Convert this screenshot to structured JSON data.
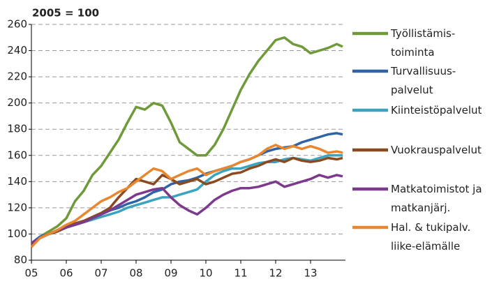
{
  "chart_data": {
    "type": "line",
    "title": "2005 = 100",
    "x": [
      2005,
      2005.25,
      2005.5,
      2005.75,
      2006,
      2006.25,
      2006.5,
      2006.75,
      2007,
      2007.25,
      2007.5,
      2007.75,
      2008,
      2008.25,
      2008.5,
      2008.75,
      2009,
      2009.25,
      2009.5,
      2009.75,
      2010,
      2010.25,
      2010.5,
      2010.75,
      2011,
      2011.25,
      2011.5,
      2011.75,
      2012,
      2012.25,
      2012.5,
      2012.75,
      2013,
      2013.25,
      2013.5,
      2013.75,
      2013.92
    ],
    "series": [
      {
        "name": "Työllistämis-\ntoiminta",
        "color": "#6f9a3a",
        "values": [
          92,
          98,
          102,
          106,
          112,
          125,
          133,
          145,
          152,
          162,
          172,
          185,
          197,
          195,
          200,
          198,
          185,
          170,
          165,
          160,
          160,
          168,
          180,
          195,
          210,
          222,
          232,
          240,
          248,
          250,
          245,
          243,
          238,
          240,
          242,
          245,
          243
        ]
      },
      {
        "name": "Turvallisuus-\npalvelut",
        "color": "#2e63a6",
        "values": [
          93,
          98,
          100,
          103,
          106,
          108,
          110,
          112,
          115,
          118,
          120,
          123,
          125,
          128,
          132,
          134,
          138,
          140,
          141,
          143,
          146,
          148,
          150,
          152,
          155,
          157,
          160,
          163,
          165,
          166,
          167,
          170,
          172,
          174,
          176,
          177,
          176
        ]
      },
      {
        "name": "Kiinteistöpalvelut",
        "color": "#3aa4bf",
        "values": [
          92,
          97,
          100,
          102,
          105,
          107,
          109,
          111,
          113,
          115,
          117,
          120,
          122,
          124,
          126,
          128,
          128,
          130,
          132,
          134,
          140,
          145,
          148,
          150,
          150,
          152,
          154,
          155,
          155,
          157,
          158,
          157,
          156,
          158,
          160,
          160,
          160
        ]
      },
      {
        "name": "Vuokrauspalvelut",
        "color": "#8b4a1e",
        "values": [
          92,
          97,
          100,
          102,
          105,
          108,
          110,
          113,
          116,
          120,
          128,
          135,
          142,
          140,
          138,
          145,
          142,
          138,
          140,
          142,
          138,
          140,
          143,
          146,
          147,
          150,
          152,
          155,
          157,
          155,
          158,
          156,
          155,
          156,
          158,
          157,
          158
        ]
      },
      {
        "name": "Matkatoimistot ja\nmatkanjärj.",
        "color": "#7d3a8c",
        "values": [
          93,
          97,
          100,
          103,
          105,
          107,
          109,
          112,
          115,
          118,
          122,
          126,
          130,
          132,
          134,
          135,
          128,
          122,
          118,
          115,
          120,
          126,
          130,
          133,
          135,
          135,
          136,
          138,
          140,
          136,
          138,
          140,
          142,
          145,
          143,
          145,
          144
        ]
      },
      {
        "name": "Hal. & tukipalv.\nliike-elämälle",
        "color": "#e8872f",
        "values": [
          90,
          97,
          100,
          103,
          107,
          110,
          115,
          120,
          125,
          128,
          132,
          135,
          140,
          145,
          150,
          148,
          142,
          145,
          148,
          150,
          145,
          148,
          150,
          152,
          155,
          157,
          160,
          165,
          168,
          165,
          167,
          165,
          167,
          165,
          162,
          163,
          162
        ]
      }
    ],
    "xlim": [
      2005,
      2014
    ],
    "xticks": [
      {
        "value": 2005,
        "label": "05"
      },
      {
        "value": 2006,
        "label": "06"
      },
      {
        "value": 2007,
        "label": "07"
      },
      {
        "value": 2008,
        "label": "08"
      },
      {
        "value": 2009,
        "label": "09"
      },
      {
        "value": 2010,
        "label": "10"
      },
      {
        "value": 2011,
        "label": "11"
      },
      {
        "value": 2012,
        "label": "12"
      },
      {
        "value": 2013,
        "label": "13"
      }
    ],
    "ylim": [
      80,
      260
    ],
    "yticks": [
      80,
      100,
      120,
      140,
      160,
      180,
      200,
      220,
      240,
      260
    ],
    "grid": true,
    "legend": "right"
  }
}
